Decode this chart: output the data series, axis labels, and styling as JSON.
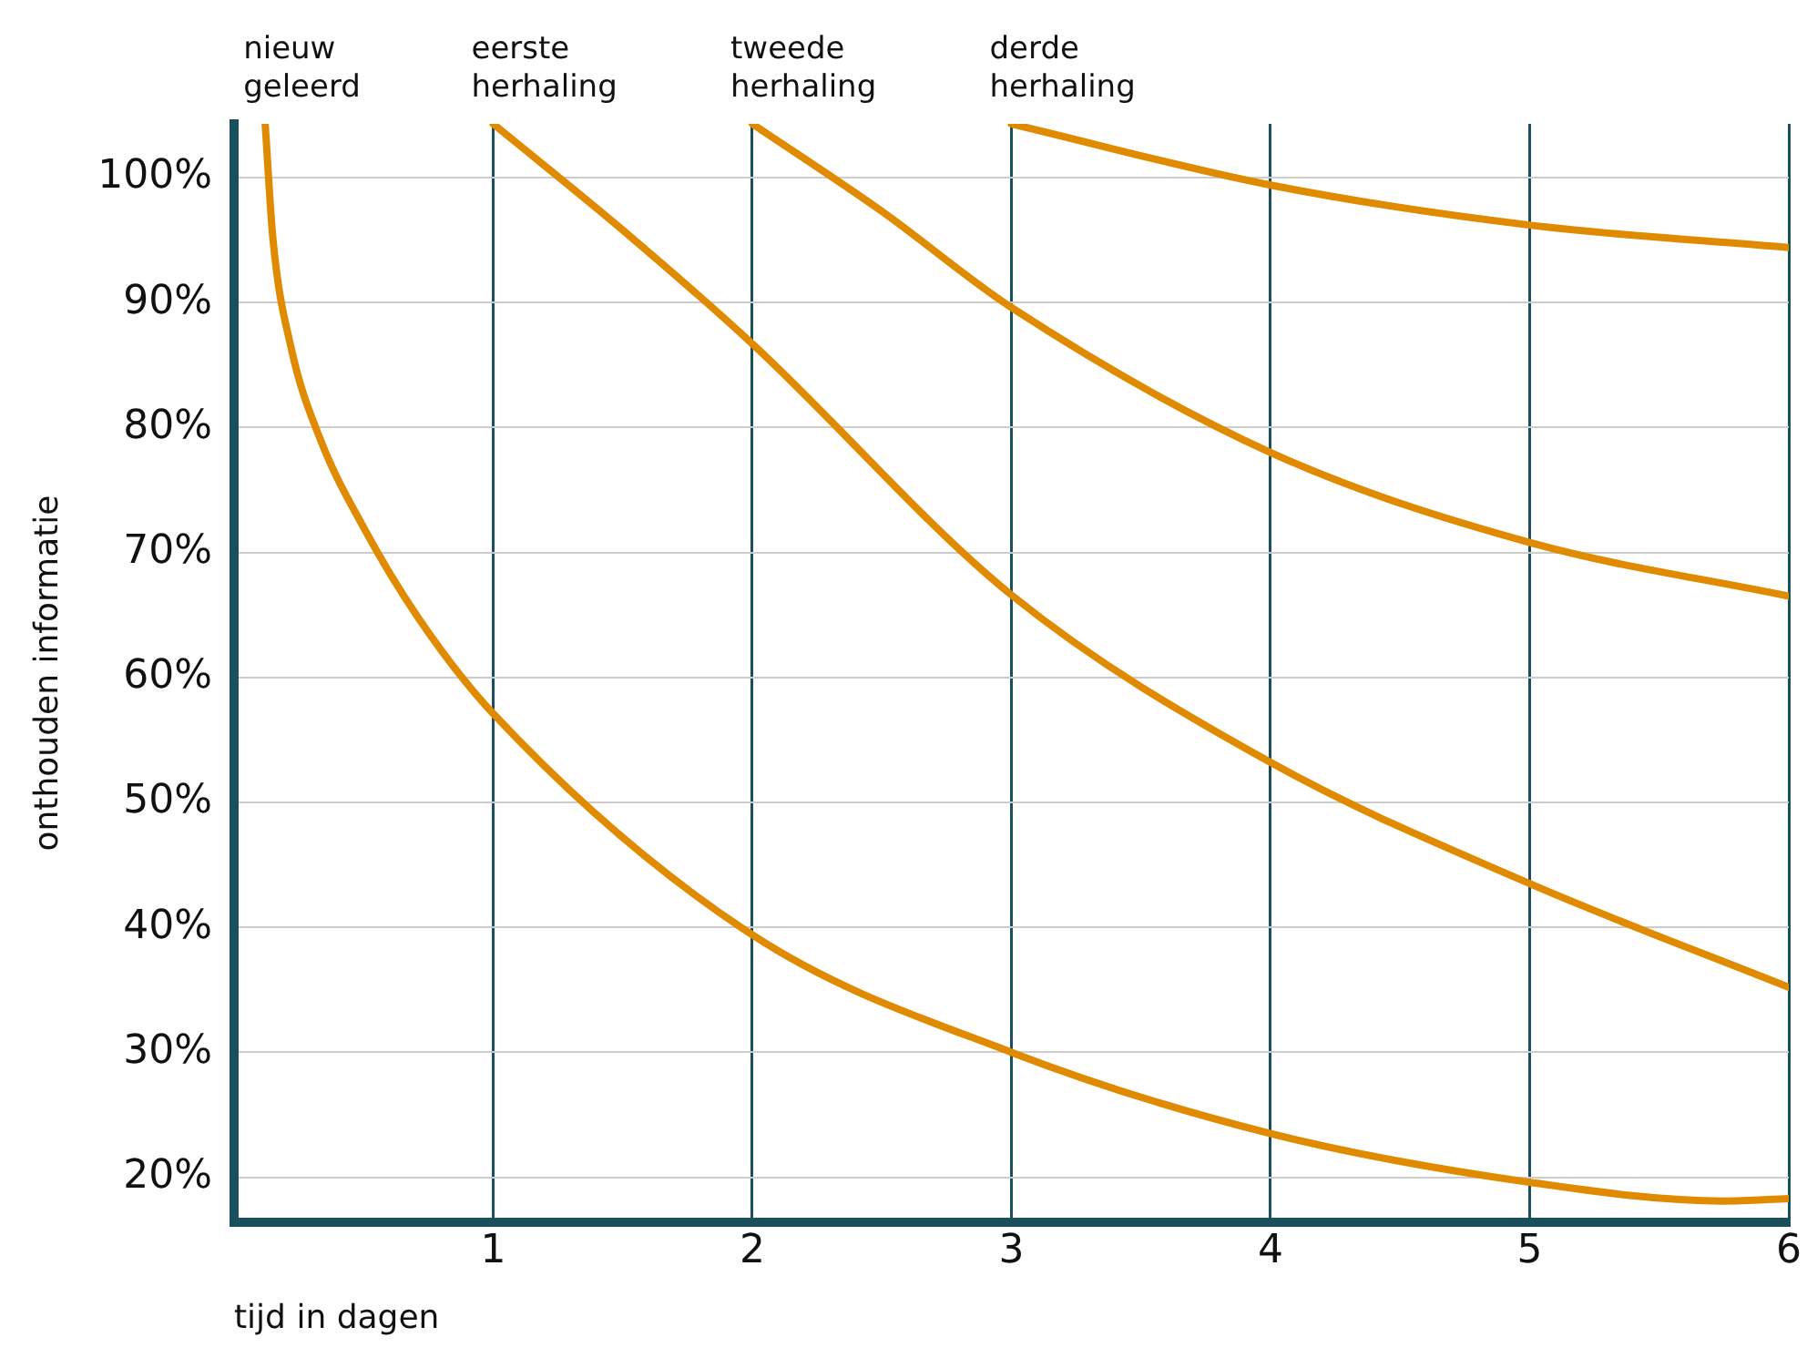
{
  "chart_data": {
    "type": "line",
    "xlabel": "tijd in dagen",
    "ylabel": "onthouden informatie",
    "xlim": [
      0,
      6
    ],
    "ylim": [
      16.4,
      104.3
    ],
    "xticks": [
      1,
      2,
      3,
      4,
      5,
      6
    ],
    "yticks": [
      {
        "value": 20,
        "label": "20%"
      },
      {
        "value": 30,
        "label": "30%"
      },
      {
        "value": 40,
        "label": "40%"
      },
      {
        "value": 50,
        "label": "50%"
      },
      {
        "value": 60,
        "label": "60%"
      },
      {
        "value": 70,
        "label": "70%"
      },
      {
        "value": 80,
        "label": "80%"
      },
      {
        "value": 90,
        "label": "90%"
      },
      {
        "value": 100,
        "label": "100%"
      }
    ],
    "grid": true,
    "legend": false,
    "marker": "none",
    "line_style": "solid",
    "series": [
      {
        "color": "#e08a00",
        "x": [
          0.12,
          0.15,
          0.22,
          0.33,
          0.5,
          0.71,
          1,
          2,
          3,
          4,
          5,
          5.75,
          6
        ],
        "values": [
          104.3,
          95.1,
          86.4,
          79.2,
          72,
          64.8,
          57.1,
          39.4,
          30,
          23.5,
          19.6,
          18.1,
          18.3
        ]
      },
      {
        "color": "#e08a00",
        "x": [
          1,
          1.5,
          2,
          3,
          4,
          5,
          6
        ],
        "values": [
          104.3,
          95.8,
          86.7,
          66.6,
          53.2,
          43.5,
          35.2
        ]
      },
      {
        "color": "#e08a00",
        "x": [
          2,
          2.5,
          3,
          4,
          5,
          6
        ],
        "values": [
          104.3,
          97.3,
          89.6,
          78,
          70.8,
          66.5
        ]
      },
      {
        "color": "#e08a00",
        "x": [
          3,
          4,
          5,
          6
        ],
        "values": [
          104.3,
          99.4,
          96.2,
          94.4
        ]
      }
    ],
    "annotations": [
      {
        "text": "nieuw geleerd",
        "x": 0.12,
        "y": 104.3
      },
      {
        "text": "eerste herhaling",
        "x": 1,
        "y": 104.3
      },
      {
        "text": "tweede herhaling",
        "x": 2,
        "y": 104.3
      },
      {
        "text": "derde herhaling",
        "x": 3,
        "y": 104.3
      }
    ]
  }
}
